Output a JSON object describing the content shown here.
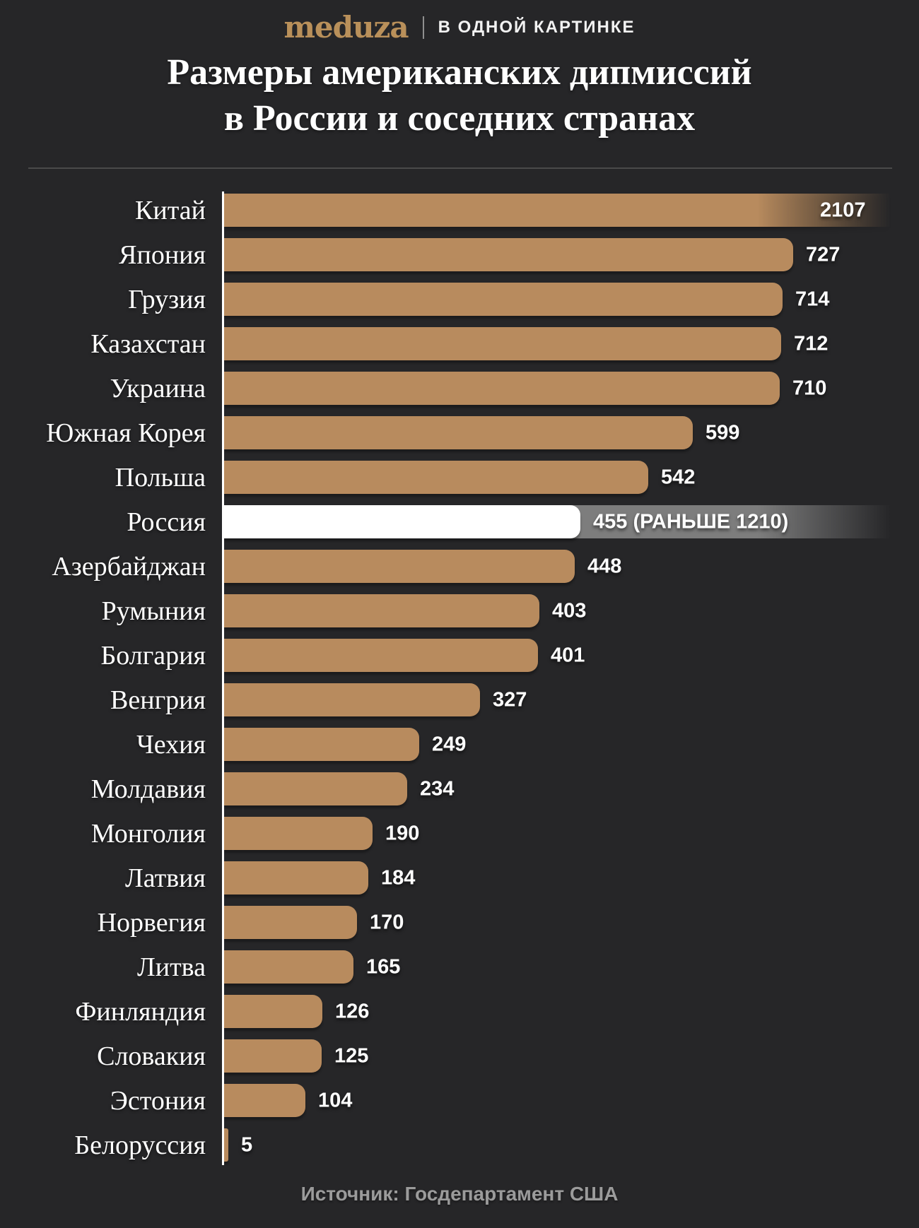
{
  "header": {
    "logo": "meduza",
    "kicker": "В ОДНОЙ КАРТИНКЕ"
  },
  "title": {
    "line1": "Размеры американских дипмиссий",
    "line2": "в России и соседних странах"
  },
  "footer": {
    "source": "Источник: Госдепартамент США"
  },
  "chart_data": {
    "type": "bar",
    "orientation": "horizontal",
    "title": "Размеры американских дипмиссий в России и соседних странах",
    "categories": [
      "Китай",
      "Япония",
      "Грузия",
      "Казахстан",
      "Украина",
      "Южная Корея",
      "Польша",
      "Россия",
      "Азербайджан",
      "Румыния",
      "Болгария",
      "Венгрия",
      "Чехия",
      "Молдавия",
      "Монголия",
      "Латвия",
      "Норвегия",
      "Литва",
      "Финляндия",
      "Словакия",
      "Эстония",
      "Белоруссия"
    ],
    "values": [
      2107,
      727,
      714,
      712,
      710,
      599,
      542,
      455,
      448,
      403,
      401,
      327,
      249,
      234,
      190,
      184,
      170,
      165,
      126,
      125,
      104,
      5
    ],
    "value_labels": [
      "2107",
      "727",
      "714",
      "712",
      "710",
      "599",
      "542",
      "455 (РАНЬШЕ 1210)",
      "448",
      "403",
      "401",
      "327",
      "249",
      "234",
      "190",
      "184",
      "170",
      "165",
      "126",
      "125",
      "104",
      "5"
    ],
    "highlight": {
      "index": 7,
      "category": "Россия",
      "current": 455,
      "previous": 1210
    },
    "overflow_index": 0,
    "grid": false,
    "legend": false,
    "colors": {
      "bar": "#b88b5e",
      "highlight_bar": "#ffffff",
      "previous_bar": "#7d7d7d",
      "background": "#262628",
      "value_text": "#ffffff",
      "label_text": "#ffffff",
      "axis": "#ffffff",
      "divider": "#4a4a4a",
      "source_text": "#9b9b9b",
      "logo": "#b9905a"
    }
  }
}
